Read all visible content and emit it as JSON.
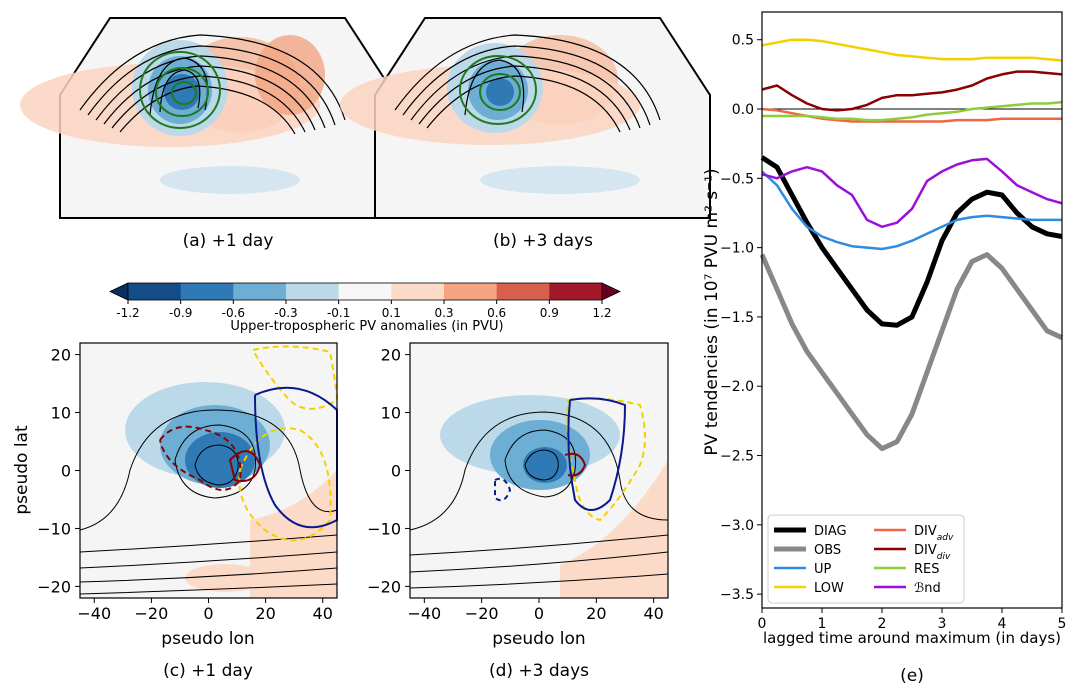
{
  "panels": {
    "a": {
      "caption": "(a) +1 day"
    },
    "b": {
      "caption": "(b) +3 days"
    },
    "c": {
      "caption": "(c) +1 day"
    },
    "d": {
      "caption": "(d) +3 days"
    },
    "e": {
      "caption": "(e)"
    }
  },
  "colorbar": {
    "label": "Upper-tropospheric PV anomalies (in PVU)",
    "ticks": [
      "-1.2",
      "-0.9",
      "-0.6",
      "-0.3",
      "-0.1",
      "0.1",
      "0.3",
      "0.6",
      "0.9",
      "1.2"
    ],
    "colors": [
      "#134c89",
      "#2f79b5",
      "#6daed4",
      "#bcd9ea",
      "#f7f7f7",
      "#fcdac8",
      "#f3a582",
      "#d6604d",
      "#a2182b"
    ],
    "extend_low": "#0b2f5e",
    "extend_high": "#67001f"
  },
  "composite_axes": {
    "ylabel": "pseudo lat",
    "xlabel": "pseudo lon",
    "xticks": [
      "−40",
      "−20",
      "0",
      "20",
      "40"
    ],
    "yticks": [
      "20",
      "10",
      "0",
      "−10",
      "−20"
    ]
  },
  "chart_data": {
    "type": "line",
    "ylabel": "PV tendencies (in 10⁷ PVU m² s⁻¹)",
    "xlabel": "lagged time around maximum (in days)",
    "xlim": [
      0,
      5
    ],
    "ylim": [
      -3.6,
      0.7
    ],
    "xticks": [
      "0",
      "1",
      "2",
      "3",
      "4",
      "5"
    ],
    "yticks": [
      "0.5",
      "0.0",
      "−0.5",
      "−1.0",
      "−1.5",
      "−2.0",
      "−2.5",
      "−3.0",
      "−3.5"
    ],
    "grid": false,
    "zero_line": true,
    "legend_position": "bottom",
    "x": [
      0,
      0.25,
      0.5,
      0.75,
      1.0,
      1.25,
      1.5,
      1.75,
      2.0,
      2.25,
      2.5,
      2.75,
      3.0,
      3.25,
      3.5,
      3.75,
      4.0,
      4.25,
      4.5,
      4.75,
      5.0
    ],
    "series": [
      {
        "name": "DIAG",
        "color": "#000000",
        "width": 5,
        "values": [
          -0.35,
          -0.42,
          -0.62,
          -0.82,
          -1.0,
          -1.15,
          -1.3,
          -1.45,
          -1.55,
          -1.56,
          -1.5,
          -1.25,
          -0.95,
          -0.75,
          -0.65,
          -0.6,
          -0.62,
          -0.75,
          -0.85,
          -0.9,
          -0.92
        ]
      },
      {
        "name": "OBS",
        "color": "#888888",
        "width": 5,
        "values": [
          -1.05,
          -1.3,
          -1.55,
          -1.75,
          -1.9,
          -2.05,
          -2.2,
          -2.35,
          -2.45,
          -2.4,
          -2.2,
          -1.9,
          -1.6,
          -1.3,
          -1.1,
          -1.05,
          -1.15,
          -1.3,
          -1.45,
          -1.6,
          -1.65
        ]
      },
      {
        "name": "UP",
        "color": "#2e8be0",
        "width": 2.5,
        "values": [
          -0.45,
          -0.55,
          -0.72,
          -0.85,
          -0.92,
          -0.96,
          -0.99,
          -1.0,
          -1.01,
          -0.99,
          -0.95,
          -0.9,
          -0.85,
          -0.8,
          -0.78,
          -0.77,
          -0.78,
          -0.79,
          -0.8,
          -0.8,
          -0.8
        ]
      },
      {
        "name": "LOW",
        "color": "#f5d000",
        "width": 2.5,
        "values": [
          0.46,
          0.48,
          0.5,
          0.5,
          0.49,
          0.47,
          0.45,
          0.43,
          0.41,
          0.39,
          0.38,
          0.37,
          0.36,
          0.36,
          0.36,
          0.37,
          0.37,
          0.37,
          0.37,
          0.36,
          0.35
        ]
      },
      {
        "name": "DIV_adv",
        "label_main": "DIV",
        "label_sub": "adv",
        "color": "#ee6644",
        "width": 2.5,
        "values": [
          0.0,
          -0.01,
          -0.03,
          -0.05,
          -0.07,
          -0.08,
          -0.09,
          -0.09,
          -0.09,
          -0.09,
          -0.09,
          -0.09,
          -0.09,
          -0.08,
          -0.08,
          -0.08,
          -0.07,
          -0.07,
          -0.07,
          -0.07,
          -0.07
        ]
      },
      {
        "name": "DIV_div",
        "label_main": "DIV",
        "label_sub": "div",
        "color": "#8b0000",
        "width": 2.5,
        "values": [
          0.14,
          0.17,
          0.1,
          0.04,
          0.0,
          -0.01,
          0.0,
          0.03,
          0.08,
          0.1,
          0.1,
          0.11,
          0.12,
          0.14,
          0.17,
          0.22,
          0.25,
          0.27,
          0.27,
          0.26,
          0.25
        ]
      },
      {
        "name": "RES",
        "color": "#8ecc3a",
        "width": 2.5,
        "values": [
          -0.05,
          -0.05,
          -0.05,
          -0.05,
          -0.06,
          -0.07,
          -0.07,
          -0.08,
          -0.08,
          -0.07,
          -0.06,
          -0.04,
          -0.03,
          -0.02,
          0.0,
          0.01,
          0.02,
          0.03,
          0.04,
          0.04,
          0.05
        ]
      },
      {
        "name": "Bnd",
        "label_main": "ℬnd",
        "color": "#9a10d8",
        "width": 2.5,
        "values": [
          -0.47,
          -0.5,
          -0.45,
          -0.42,
          -0.45,
          -0.55,
          -0.62,
          -0.8,
          -0.85,
          -0.82,
          -0.72,
          -0.52,
          -0.45,
          -0.4,
          -0.37,
          -0.36,
          -0.45,
          -0.55,
          -0.6,
          -0.65,
          -0.68
        ]
      }
    ]
  }
}
